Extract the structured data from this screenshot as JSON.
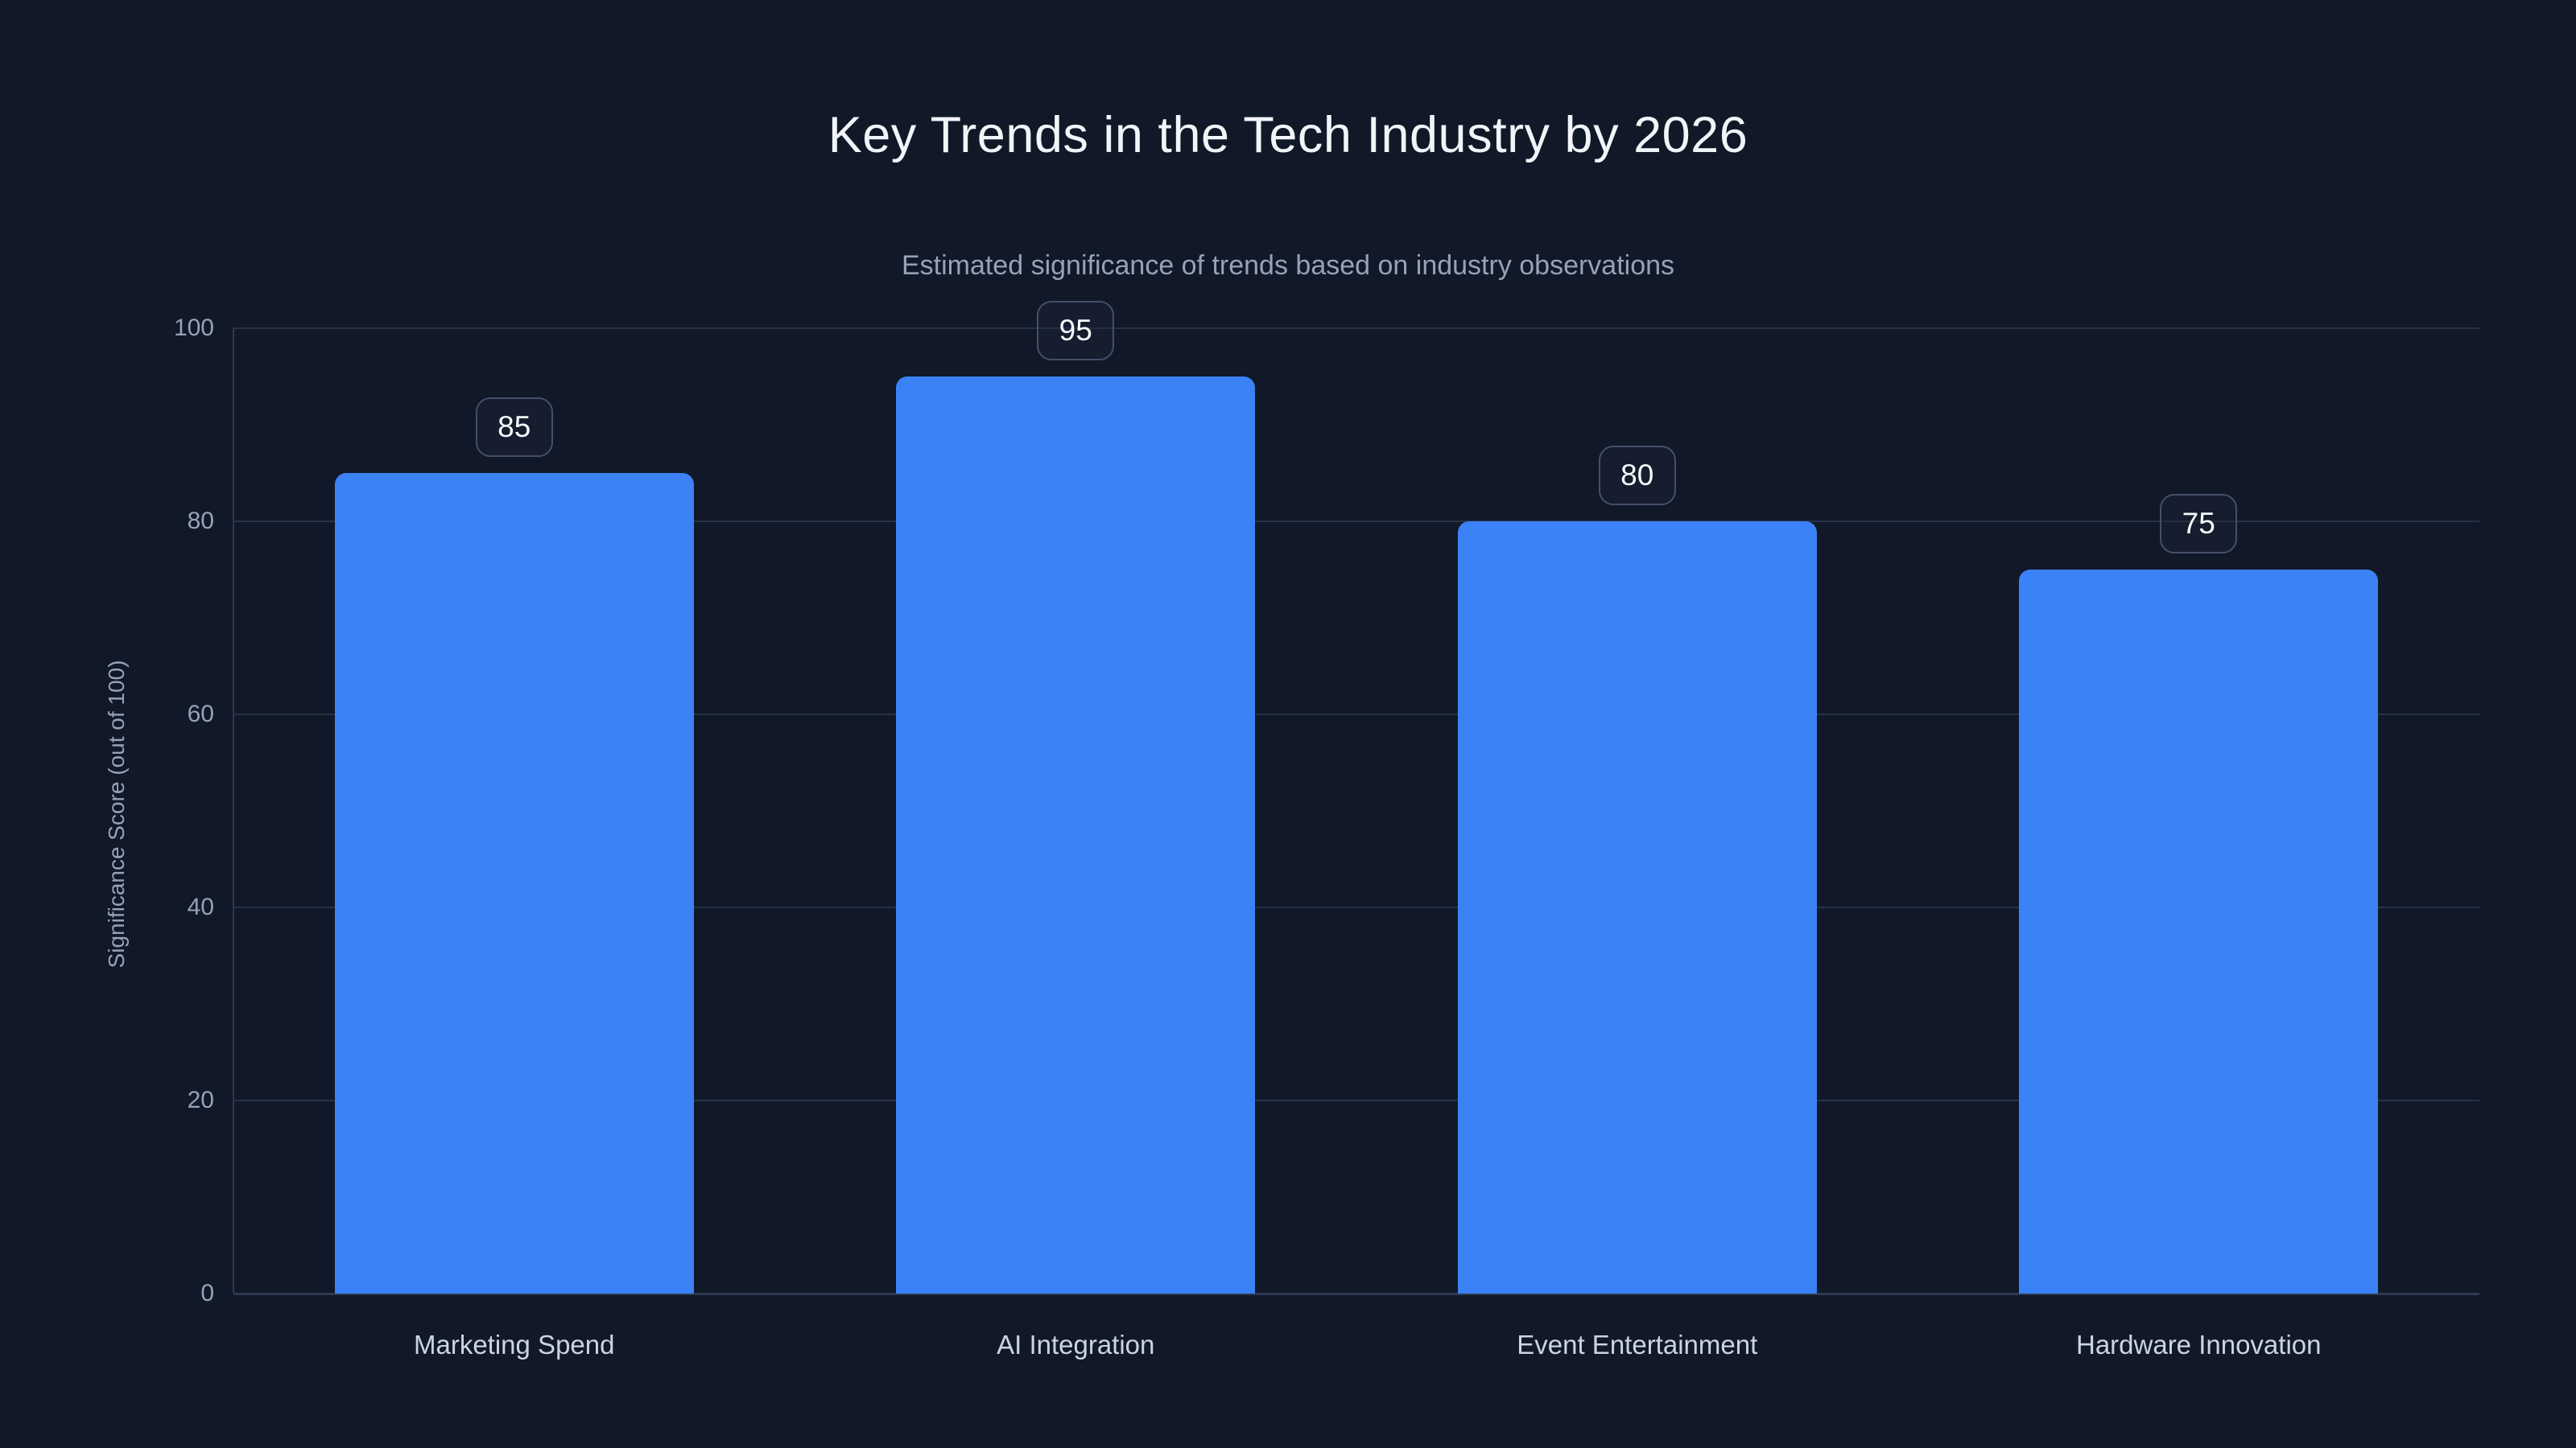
{
  "header": {
    "title": "Key Trends in the Tech Industry by 2026",
    "subtitle": "Estimated significance of trends based on industry observations"
  },
  "chart_data": {
    "type": "bar",
    "title": "Key Trends in the Tech Industry by 2026",
    "subtitle": "Estimated significance of trends based on industry observations",
    "categories": [
      "Marketing Spend",
      "AI Integration",
      "Event Entertainment",
      "Hardware Innovation"
    ],
    "values": [
      85,
      95,
      80,
      75
    ],
    "value_labels": [
      "85",
      "95",
      "80",
      "75"
    ],
    "xlabel": "",
    "ylabel": "Significance Score (out of 100)",
    "ylim": [
      0,
      100
    ],
    "yticks": [
      0,
      20,
      40,
      60,
      80,
      100
    ],
    "grid": true,
    "legend_position": "none",
    "colors": {
      "background": "#111827",
      "bar": "#3b82f6",
      "grid": "#273248",
      "axis": "#2e3a52",
      "title": "#f1f5f9",
      "subtitle": "#94a3b8",
      "tick_label": "#94a3b8",
      "category_label": "#cbd5e1",
      "badge_text": "#f8fafc",
      "badge_border": "#44506a"
    }
  }
}
